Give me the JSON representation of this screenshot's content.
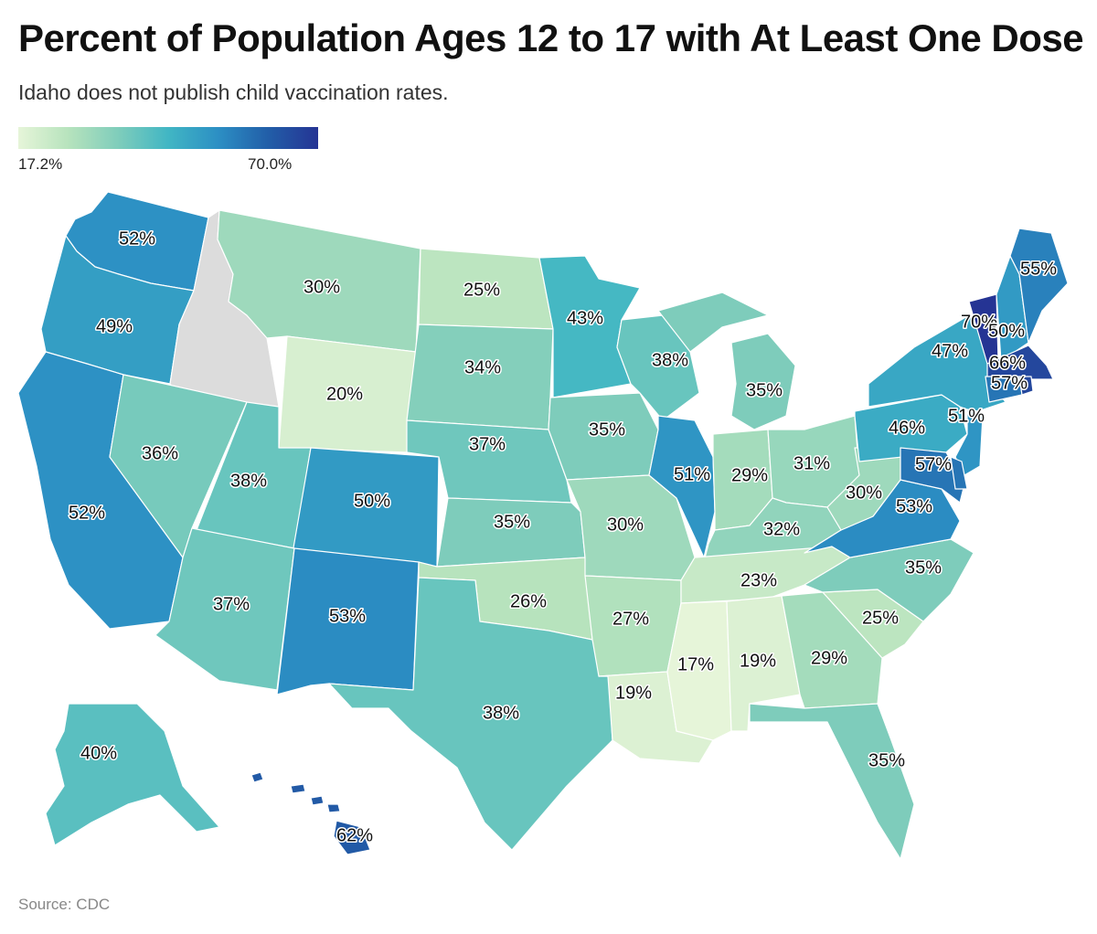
{
  "title": "Percent of Population Ages 12 to 17 with At Least One Dose",
  "subtitle": "Idaho does not publish child vaccination rates.",
  "legend": {
    "min_label": "17.2%",
    "max_label": "70.0%",
    "min_value": 17.2,
    "max_value": 70.0
  },
  "source": "Source: CDC",
  "colors": {
    "no_data": "#dcdcdc",
    "scale": [
      "#e6f5d9",
      "#b7e3bd",
      "#7fcdbb",
      "#41b6c4",
      "#2c8fc4",
      "#225ea8",
      "#253494"
    ]
  },
  "chart_data": {
    "type": "choropleth",
    "title": "Percent of Population Ages 12 to 17 with At Least One Dose",
    "unit": "%",
    "regions": [
      {
        "state": "Washington",
        "value": 52,
        "label": "52%"
      },
      {
        "state": "Oregon",
        "value": 49,
        "label": "49%"
      },
      {
        "state": "California",
        "value": 52,
        "label": "52%"
      },
      {
        "state": "Idaho",
        "value": null,
        "label": ""
      },
      {
        "state": "Montana",
        "value": 30,
        "label": "30%"
      },
      {
        "state": "Wyoming",
        "value": 20,
        "label": "20%"
      },
      {
        "state": "Nevada",
        "value": 36,
        "label": "36%"
      },
      {
        "state": "Utah",
        "value": 38,
        "label": "38%"
      },
      {
        "state": "Colorado",
        "value": 50,
        "label": "50%"
      },
      {
        "state": "Arizona",
        "value": 37,
        "label": "37%"
      },
      {
        "state": "New Mexico",
        "value": 53,
        "label": "53%"
      },
      {
        "state": "North Dakota",
        "value": 25,
        "label": "25%"
      },
      {
        "state": "South Dakota",
        "value": 34,
        "label": "34%"
      },
      {
        "state": "Nebraska",
        "value": 37,
        "label": "37%"
      },
      {
        "state": "Kansas",
        "value": 35,
        "label": "35%"
      },
      {
        "state": "Oklahoma",
        "value": 26,
        "label": "26%"
      },
      {
        "state": "Texas",
        "value": 38,
        "label": "38%"
      },
      {
        "state": "Minnesota",
        "value": 43,
        "label": "43%"
      },
      {
        "state": "Iowa",
        "value": 35,
        "label": "35%"
      },
      {
        "state": "Missouri",
        "value": 30,
        "label": "30%"
      },
      {
        "state": "Arkansas",
        "value": 27,
        "label": "27%"
      },
      {
        "state": "Louisiana",
        "value": 19,
        "label": "19%"
      },
      {
        "state": "Wisconsin",
        "value": 38,
        "label": "38%"
      },
      {
        "state": "Illinois",
        "value": 51,
        "label": "51%"
      },
      {
        "state": "Michigan",
        "value": 35,
        "label": "35%"
      },
      {
        "state": "Indiana",
        "value": 29,
        "label": "29%"
      },
      {
        "state": "Ohio",
        "value": 31,
        "label": "31%"
      },
      {
        "state": "Kentucky",
        "value": 32,
        "label": "32%"
      },
      {
        "state": "Tennessee",
        "value": 23,
        "label": "23%"
      },
      {
        "state": "Mississippi",
        "value": 17,
        "label": "17%"
      },
      {
        "state": "Alabama",
        "value": 19,
        "label": "19%"
      },
      {
        "state": "Georgia",
        "value": 29,
        "label": "29%"
      },
      {
        "state": "Florida",
        "value": 35,
        "label": "35%"
      },
      {
        "state": "South Carolina",
        "value": 25,
        "label": "25%"
      },
      {
        "state": "North Carolina",
        "value": 35,
        "label": "35%"
      },
      {
        "state": "Virginia",
        "value": 53,
        "label": "53%"
      },
      {
        "state": "West Virginia",
        "value": 30,
        "label": "30%"
      },
      {
        "state": "Pennsylvania",
        "value": 46,
        "label": "46%"
      },
      {
        "state": "New York",
        "value": 47,
        "label": "47%"
      },
      {
        "state": "New Jersey",
        "value": 51,
        "label": "51%"
      },
      {
        "state": "Maryland",
        "value": 57,
        "label": "57%"
      },
      {
        "state": "Delaware",
        "value": 57,
        "label": ""
      },
      {
        "state": "Vermont",
        "value": 70,
        "label": "70%"
      },
      {
        "state": "New Hampshire",
        "value": 50,
        "label": "50%"
      },
      {
        "state": "Maine",
        "value": 55,
        "label": "55%"
      },
      {
        "state": "Massachusetts",
        "value": 66,
        "label": "66%"
      },
      {
        "state": "Connecticut",
        "value": 57,
        "label": "57%"
      },
      {
        "state": "Rhode Island",
        "value": 66,
        "label": ""
      },
      {
        "state": "Alaska",
        "value": 40,
        "label": "40%"
      },
      {
        "state": "Hawaii",
        "value": 62,
        "label": "62%"
      }
    ]
  }
}
